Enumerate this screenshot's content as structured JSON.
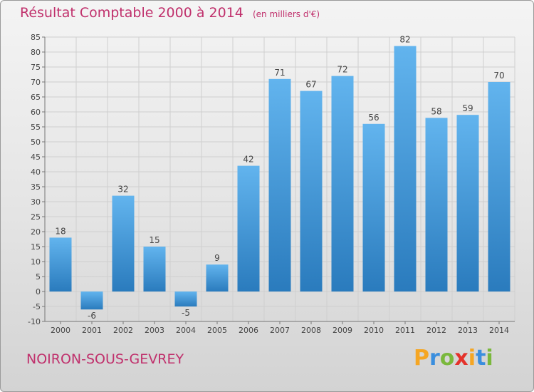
{
  "header": {
    "title": "Résultat Comptable 2000 à 2014",
    "unit": "(en milliers d'€)"
  },
  "footer": {
    "commune": "NOIRON-SOUS-GEVREY",
    "brand": "Proxiti",
    "brand_colors": [
      "#f5a623",
      "#3a8ede",
      "#7ab83c",
      "#e4322b",
      "#f5a623",
      "#3a8ede",
      "#7ab83c"
    ]
  },
  "colors": {
    "accent": "#c0306c",
    "bar_light": "#62b4ee",
    "bar_dark": "#2a7bbd"
  },
  "chart_data": {
    "type": "bar",
    "categories": [
      "2000",
      "2001",
      "2002",
      "2003",
      "2004",
      "2005",
      "2006",
      "2007",
      "2008",
      "2009",
      "2010",
      "2011",
      "2012",
      "2013",
      "2014"
    ],
    "values": [
      18,
      -6,
      32,
      15,
      -5,
      9,
      42,
      71,
      67,
      72,
      56,
      82,
      58,
      59,
      70
    ],
    "ylim": [
      -10,
      85
    ],
    "yticks": [
      -10,
      -5,
      0,
      5,
      10,
      15,
      20,
      25,
      30,
      35,
      40,
      45,
      50,
      55,
      60,
      65,
      70,
      75,
      80,
      85
    ],
    "grid": true,
    "title": "Résultat Comptable 2000 à 2014",
    "xlabel": "",
    "ylabel": ""
  }
}
